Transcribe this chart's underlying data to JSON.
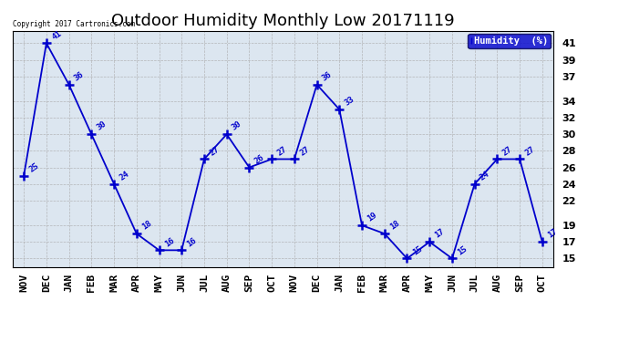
{
  "title": "Outdoor Humidity Monthly Low 20171119",
  "categories": [
    "NOV",
    "DEC",
    "JAN",
    "FEB",
    "MAR",
    "APR",
    "MAY",
    "JUN",
    "JUL",
    "AUG",
    "SEP",
    "OCT",
    "NOV",
    "DEC",
    "JAN",
    "FEB",
    "MAR",
    "APR",
    "MAY",
    "JUN",
    "JUL",
    "AUG",
    "SEP",
    "OCT"
  ],
  "values": [
    25,
    41,
    36,
    30,
    24,
    18,
    16,
    16,
    27,
    30,
    26,
    27,
    27,
    36,
    33,
    19,
    18,
    15,
    17,
    15,
    24,
    27,
    27,
    17
  ],
  "line_color": "#0000cc",
  "marker": "+",
  "marker_color": "#0000cc",
  "bg_color": "#ffffff",
  "plot_bg_color": "#dce6f0",
  "grid_color": "#aaaaaa",
  "yticks": [
    15,
    17,
    19,
    22,
    24,
    26,
    28,
    30,
    32,
    34,
    37,
    39,
    41
  ],
  "ylim": [
    14.0,
    42.5
  ],
  "legend_label": "Humidity  (%)",
  "legend_bg": "#0000cc",
  "legend_text_color": "#ffffff",
  "copyright_text": "Copyright 2017 Cartronics.com",
  "title_fontsize": 13,
  "tick_fontsize": 8,
  "label_fontsize": 7
}
